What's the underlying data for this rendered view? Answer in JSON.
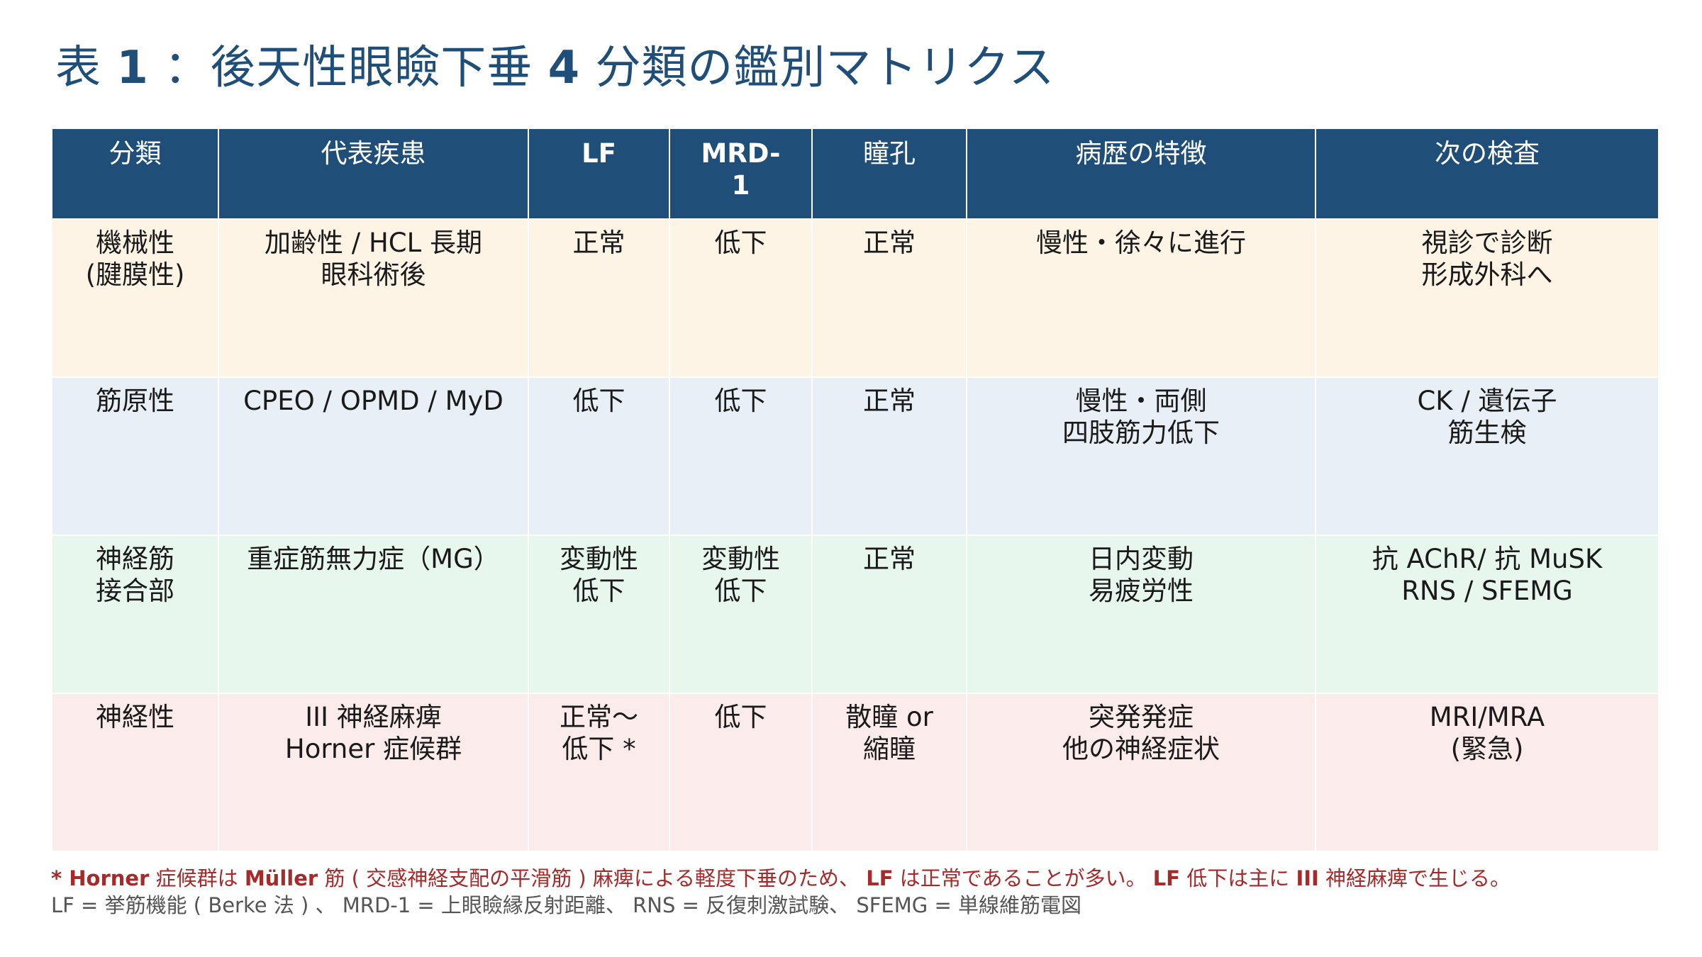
{
  "title": {
    "prefix": "表",
    "number": "1",
    "text": "：後天性眼瞼下垂",
    "count": "4",
    "suffix": "分類の鑑別マトリクス"
  },
  "table": {
    "headers": [
      "分類",
      "代表疾患",
      "LF",
      "MRD-\n1",
      "瞳孔",
      "病歴の特徴",
      "次の検査"
    ],
    "rows": [
      [
        "機械性\n(腱膜性)",
        "加齢性 / HCL 長期\n眼科術後",
        "正常",
        "低下",
        "正常",
        "慢性・徐々に進行",
        "視診で診断\n形成外科へ"
      ],
      [
        "筋原性",
        "CPEO / OPMD / MyD",
        "低下",
        "低下",
        "正常",
        "慢性・両側\n四肢筋力低下",
        "CK / 遺伝子\n筋生検"
      ],
      [
        "神経筋\n接合部",
        "重症筋無力症（MG）",
        "変動性\n低下",
        "変動性\n低下",
        "正常",
        "日内変動\n易疲労性",
        "抗 AChR/ 抗 MuSK\nRNS / SFEMG"
      ],
      [
        "神経性",
        "III 神経麻痺\nHorner 症候群",
        "正常〜\n低下 *",
        "低下",
        "散瞳 or\n縮瞳",
        "突発発症\n他の神経症状",
        "MRI/MRA\n(緊急)"
      ]
    ]
  },
  "footnotes": {
    "note1": {
      "p1": "* Horner",
      "p2": " 症候群は ",
      "p3": "Müller",
      "p4": " 筋 ( 交感神経支配の平滑筋 ) 麻痺による軽度下垂のため、 ",
      "p5": "LF",
      "p6": " は正常であることが多い。 ",
      "p7": "LF",
      "p8": " 低下は主に ",
      "p9": "III",
      "p10": " 神経麻痺で生じる。"
    },
    "note2": "LF = 挙筋機能 ( Berke 法 ) 、 MRD-1 = 上眼瞼縁反射距離、 RNS = 反復刺激試験、 SFEMG = 単線維筋電図"
  },
  "colors": {
    "header_bg": "#1f4e79",
    "title": "#1f4e79",
    "row_mechanical": "#fdf4e6",
    "row_myogenic": "#e9eff6",
    "row_nmj": "#e8f7ee",
    "row_neurogenic": "#fcebeb",
    "footnote_accent": "#a52a2a"
  }
}
